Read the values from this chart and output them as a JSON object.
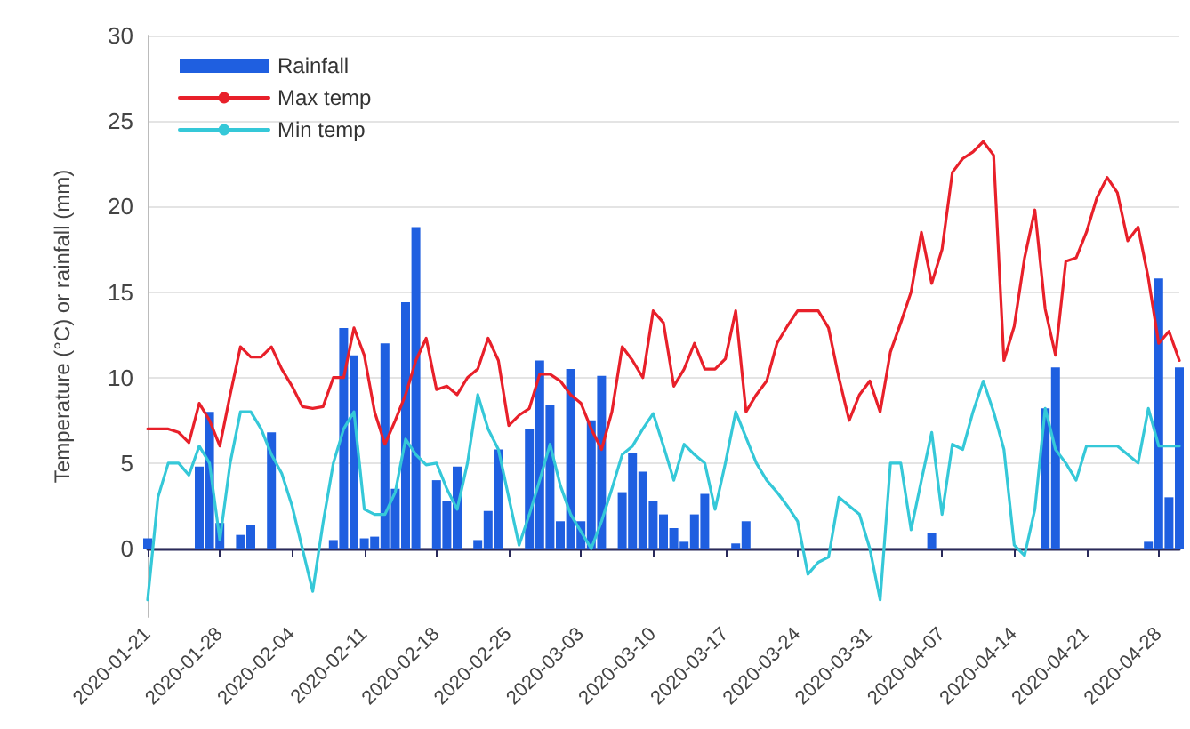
{
  "chart_data": {
    "type": "bar",
    "ylabel": "Temperature (°C) or rainfall (mm)",
    "x": [
      "2020-01-21",
      "2020-01-22",
      "2020-01-23",
      "2020-01-24",
      "2020-01-25",
      "2020-01-26",
      "2020-01-27",
      "2020-01-28",
      "2020-01-29",
      "2020-01-30",
      "2020-01-31",
      "2020-02-01",
      "2020-02-02",
      "2020-02-03",
      "2020-02-04",
      "2020-02-05",
      "2020-02-06",
      "2020-02-07",
      "2020-02-08",
      "2020-02-09",
      "2020-02-10",
      "2020-02-11",
      "2020-02-12",
      "2020-02-13",
      "2020-02-14",
      "2020-02-15",
      "2020-02-16",
      "2020-02-17",
      "2020-02-18",
      "2020-02-19",
      "2020-02-20",
      "2020-02-21",
      "2020-02-22",
      "2020-02-23",
      "2020-02-24",
      "2020-02-25",
      "2020-02-26",
      "2020-02-27",
      "2020-02-28",
      "2020-02-29",
      "2020-03-01",
      "2020-03-02",
      "2020-03-03",
      "2020-03-04",
      "2020-03-05",
      "2020-03-06",
      "2020-03-07",
      "2020-03-08",
      "2020-03-09",
      "2020-03-10",
      "2020-03-11",
      "2020-03-12",
      "2020-03-13",
      "2020-03-14",
      "2020-03-15",
      "2020-03-16",
      "2020-03-17",
      "2020-03-18",
      "2020-03-19",
      "2020-03-20",
      "2020-03-21",
      "2020-03-22",
      "2020-03-23",
      "2020-03-24",
      "2020-03-25",
      "2020-03-26",
      "2020-03-27",
      "2020-03-28",
      "2020-03-29",
      "2020-03-30",
      "2020-03-31",
      "2020-04-01",
      "2020-04-02",
      "2020-04-03",
      "2020-04-04",
      "2020-04-05",
      "2020-04-06",
      "2020-04-07",
      "2020-04-08",
      "2020-04-09",
      "2020-04-10",
      "2020-04-11",
      "2020-04-12",
      "2020-04-13",
      "2020-04-14",
      "2020-04-15",
      "2020-04-16",
      "2020-04-17",
      "2020-04-18",
      "2020-04-19",
      "2020-04-20",
      "2020-04-21",
      "2020-04-22",
      "2020-04-23",
      "2020-04-24",
      "2020-04-25",
      "2020-04-26",
      "2020-04-27",
      "2020-04-28",
      "2020-04-29",
      "2020-04-30"
    ],
    "series": [
      {
        "name": "Rainfall",
        "color": "#1f5fe0",
        "values": [
          0.6,
          0,
          0,
          0,
          0,
          4.8,
          8,
          1.5,
          0,
          0.8,
          1.4,
          0,
          6.8,
          0,
          0,
          0,
          0,
          0,
          0.5,
          12.9,
          11.3,
          0.6,
          0.7,
          12,
          3.5,
          14.4,
          18.8,
          0,
          4,
          2.8,
          4.8,
          0,
          0.5,
          2.2,
          5.8,
          0,
          0,
          7,
          11,
          8.4,
          1.6,
          10.5,
          1.6,
          7.5,
          10.1,
          0,
          3.3,
          5.6,
          4.5,
          2.8,
          2,
          1.2,
          0.4,
          2,
          3.2,
          0,
          0,
          0.3,
          1.6,
          0,
          0,
          0,
          0,
          0,
          0,
          0,
          0,
          0,
          0,
          0,
          0,
          0,
          0,
          0,
          0,
          0,
          0.9,
          0,
          0,
          0,
          0,
          0,
          0,
          0,
          0,
          0,
          0,
          8.2,
          10.6,
          0,
          0,
          0,
          0,
          0,
          0,
          0,
          0,
          0.4,
          15.8,
          3,
          10.6
        ]
      },
      {
        "name": "Max temp",
        "type": "line",
        "color": "#e8202a",
        "values": [
          7,
          7,
          7,
          6.8,
          6.2,
          8.5,
          7.5,
          6,
          9,
          11.8,
          11.2,
          11.2,
          11.8,
          10.5,
          9.5,
          8.3,
          8.2,
          8.3,
          10,
          10,
          12.9,
          11.3,
          8,
          6.1,
          7.5,
          9,
          11,
          12.3,
          9.3,
          9.5,
          9,
          10,
          10.5,
          12.3,
          11,
          7.2,
          7.8,
          8.2,
          10.2,
          10.2,
          9.8,
          9,
          8.5,
          7,
          5.8,
          8,
          11.8,
          11,
          10,
          13.9,
          13.2,
          9.5,
          10.5,
          12,
          10.5,
          10.5,
          11.1,
          13.9,
          8,
          9,
          9.8,
          12,
          13,
          13.9,
          13.9,
          13.9,
          12.9,
          10,
          7.5,
          9,
          9.8,
          8,
          11.5,
          13.2,
          15,
          18.5,
          15.5,
          17.5,
          22,
          22.8,
          23.2,
          23.8,
          23,
          11,
          13,
          17,
          19.8,
          14,
          11.3,
          16.8,
          17,
          18.5,
          20.5,
          21.7,
          20.8,
          18,
          18.8,
          15.8,
          12,
          12.7,
          11
        ]
      },
      {
        "name": "Min temp",
        "type": "line",
        "color": "#35c8d8",
        "values": [
          -3,
          3,
          5,
          5,
          4.3,
          6,
          5,
          0.5,
          5,
          8,
          8,
          7,
          5.5,
          4.4,
          2.5,
          0,
          -2.5,
          1.5,
          5,
          7,
          8,
          2.3,
          2,
          2,
          3.3,
          6.4,
          5.5,
          4.9,
          5,
          3.5,
          2.3,
          5,
          9,
          7,
          5.8,
          3,
          0.2,
          2,
          4,
          6.1,
          3.7,
          2,
          1,
          0,
          1.6,
          3.5,
          5.5,
          6,
          7,
          7.9,
          6,
          4,
          6.1,
          5.5,
          5,
          2.3,
          5,
          8,
          6.5,
          5,
          4,
          3.3,
          2.5,
          1.6,
          -1.5,
          -0.8,
          -0.5,
          3,
          2.5,
          2,
          0,
          -3,
          5,
          5,
          1.1,
          4,
          6.8,
          2,
          6.1,
          5.8,
          8,
          9.8,
          8,
          5.8,
          0.2,
          -0.4,
          2.3,
          8.2,
          5.8,
          5,
          4,
          6,
          6,
          6,
          6,
          5.5,
          5,
          8.2,
          6,
          6,
          6
        ]
      }
    ],
    "xlim": [
      "2020-01-21",
      "2020-04-30"
    ],
    "xticks": [
      "2020-01-21",
      "2020-01-28",
      "2020-02-04",
      "2020-02-11",
      "2020-02-18",
      "2020-02-25",
      "2020-03-03",
      "2020-03-10",
      "2020-03-17",
      "2020-03-24",
      "2020-03-31",
      "2020-04-07",
      "2020-04-14",
      "2020-04-21",
      "2020-04-28"
    ],
    "ylim": [
      -4,
      30
    ],
    "yticks": [
      0,
      5,
      10,
      15,
      20,
      25,
      30
    ],
    "grid": "y",
    "legend": "top left",
    "marker": "none",
    "line_style": "solid"
  }
}
